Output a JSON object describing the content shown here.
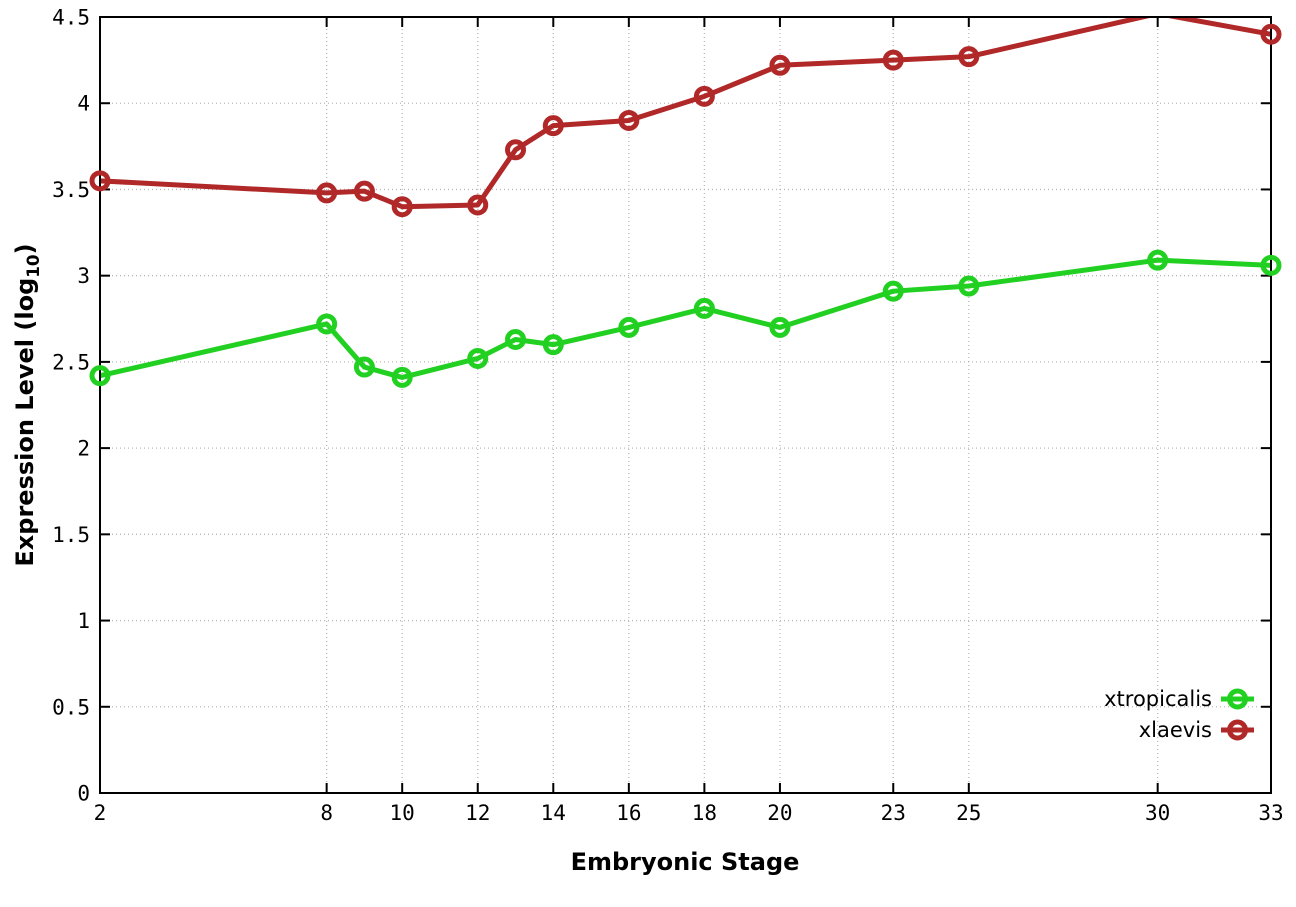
{
  "chart_data": {
    "type": "line",
    "title": "",
    "xlabel": "Embryonic Stage",
    "ylabel": "Expression Level (log10)",
    "ylabel_parts": {
      "pre": "Expression Level (log",
      "sub": "10",
      "post": ")"
    },
    "x": [
      2,
      8,
      9,
      10,
      12,
      13,
      14,
      16,
      18,
      20,
      23,
      25,
      30,
      33
    ],
    "xlim": [
      2,
      33
    ],
    "ylim": [
      0,
      4.5
    ],
    "x_ticks": [
      2,
      8,
      10,
      12,
      14,
      16,
      18,
      20,
      23,
      25,
      30,
      33
    ],
    "x_tick_labels": [
      "2",
      "8",
      "10",
      "12",
      "14",
      "16",
      "18",
      "20",
      "23",
      "25",
      "30",
      "33"
    ],
    "y_ticks": [
      0,
      0.5,
      1,
      1.5,
      2,
      2.5,
      3,
      3.5,
      4,
      4.5
    ],
    "y_tick_labels": [
      "0",
      "0.5",
      "1",
      "1.5",
      "2",
      "2.5",
      "3",
      "3.5",
      "4",
      "4.5"
    ],
    "grid": true,
    "legend_position": "inside-bottom-right",
    "series": [
      {
        "name": "xtropicalis",
        "color": "#22d022",
        "marker": "open-circle",
        "values": [
          2.42,
          2.72,
          2.47,
          2.41,
          2.52,
          2.63,
          2.6,
          2.7,
          2.81,
          2.7,
          2.91,
          2.94,
          3.09,
          3.06
        ]
      },
      {
        "name": "xlaevis",
        "color": "#b02828",
        "marker": "open-circle",
        "values": [
          3.55,
          3.48,
          3.49,
          3.4,
          3.41,
          3.73,
          3.87,
          3.9,
          4.04,
          4.22,
          4.25,
          4.27,
          4.52,
          4.4
        ]
      }
    ]
  },
  "style": {
    "grid_color": "#b8b8b8",
    "border_color": "#000000",
    "background": "#ffffff"
  }
}
